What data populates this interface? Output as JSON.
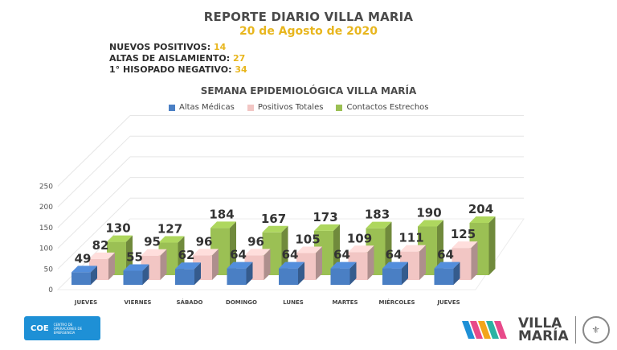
{
  "header": {
    "title": "REPORTE DIARIO VILLA MARIA",
    "date": "20 de Agosto de 2020"
  },
  "stats": [
    {
      "label": "NUEVOS POSITIVOS:",
      "value": "14"
    },
    {
      "label": "ALTAS DE AISLAMIENTO:",
      "value": "27"
    },
    {
      "label": "1° HISOPADO NEGATIVO:",
      "value": "34"
    }
  ],
  "chart_data": {
    "type": "bar",
    "title": "SEMANA EPIDEMIOLÓGICA VILLA MARÍA",
    "categories": [
      "JUEVES",
      "VIERNES",
      "SÁBADO",
      "DOMINGO",
      "LUNES",
      "MARTES",
      "MIÉRCOLES",
      "JUEVES"
    ],
    "series": [
      {
        "name": "Altas Médicas",
        "color": "#4a7fc4",
        "values": [
          49,
          55,
          62,
          64,
          64,
          64,
          64,
          64
        ]
      },
      {
        "name": "Positivos Totales",
        "color": "#f2c6c4",
        "values": [
          82,
          95,
          96,
          96,
          105,
          109,
          111,
          125
        ]
      },
      {
        "name": "Contactos Estrechos",
        "color": "#9bc054",
        "values": [
          130,
          127,
          184,
          167,
          173,
          183,
          190,
          204
        ]
      }
    ],
    "y_ticks": [
      "0",
      "50",
      "100",
      "150",
      "200",
      "250"
    ],
    "ylim": [
      0,
      250
    ],
    "legend_position": "top",
    "grid": true
  },
  "footer": {
    "coe_label": "COE",
    "coe_sub": "CENTRO DE OPERACIONES DE EMERGENCIA",
    "brand_line1": "VILLA",
    "brand_line2": "MARÍA",
    "seal_icon": "city-seal-icon"
  }
}
